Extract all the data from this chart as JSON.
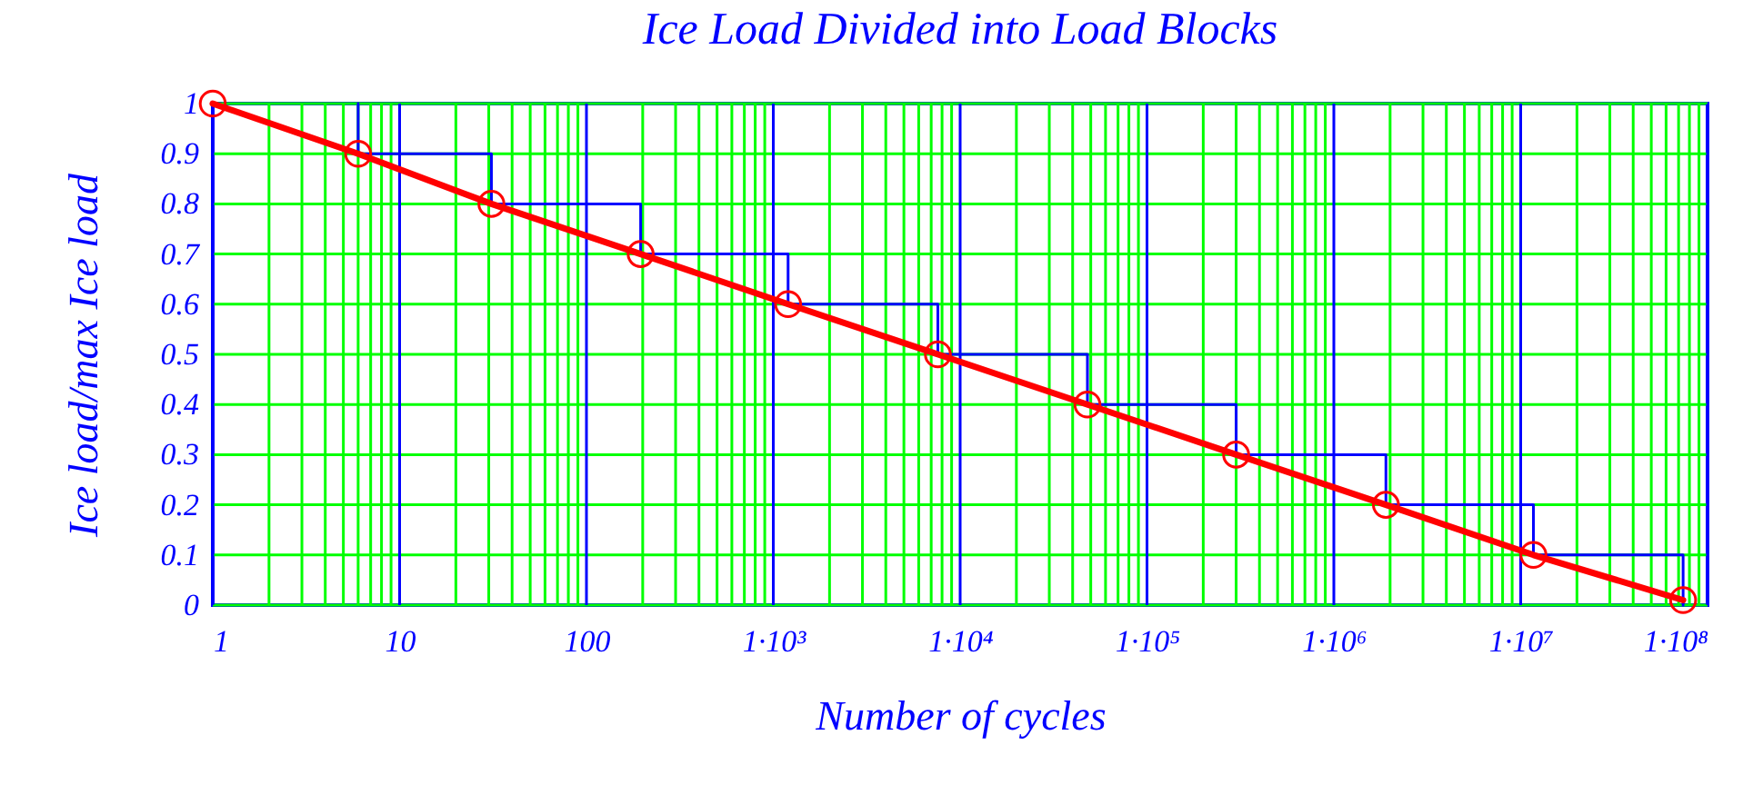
{
  "chart_data": {
    "type": "line",
    "title": "Ice Load Divided into Load Blocks",
    "xlabel": "Number of cycles",
    "ylabel": "Ice load/max Ice load",
    "log": "x",
    "grid": true,
    "xlim": [
      1,
      100000000
    ],
    "ylim": [
      0,
      1
    ],
    "xticks": [
      1,
      {
        "value": 2,
        "label": null
      },
      {
        "value": 3,
        "label": null
      },
      {
        "value": 4,
        "label": null
      },
      {
        "value": 5,
        "label": null
      },
      {
        "value": 6,
        "label": null
      },
      {
        "value": 7,
        "label": null
      },
      {
        "value": 8,
        "label": null
      },
      {
        "value": 9,
        "label": null
      },
      10,
      {
        "value": 20,
        "label": null
      },
      {
        "value": 30,
        "label": null
      },
      {
        "value": 40,
        "label": null
      },
      {
        "value": 50,
        "label": null
      },
      {
        "value": 60,
        "label": null
      },
      {
        "value": 70,
        "label": null
      },
      {
        "value": 80,
        "label": null
      },
      {
        "value": 90,
        "label": null
      },
      100,
      {
        "value": 200,
        "label": null
      },
      {
        "value": 300,
        "label": null
      },
      {
        "value": 400,
        "label": null
      },
      {
        "value": 500,
        "label": null
      },
      {
        "value": 600,
        "label": null
      },
      {
        "value": 700,
        "label": null
      },
      {
        "value": 800,
        "label": null
      },
      {
        "value": 900,
        "label": null
      },
      {
        "value": 1000,
        "label": "1·10³"
      },
      {
        "value": 2000,
        "label": null
      },
      {
        "value": 3000,
        "label": null
      },
      {
        "value": 4000,
        "label": null
      },
      {
        "value": 5000,
        "label": null
      },
      {
        "value": 6000,
        "label": null
      },
      {
        "value": 7000,
        "label": null
      },
      {
        "value": 8000,
        "label": null
      },
      {
        "value": 9000,
        "label": null
      },
      {
        "value": 10000,
        "label": "1·10⁴"
      },
      {
        "value": 20000,
        "label": null
      },
      {
        "value": 30000,
        "label": null
      },
      {
        "value": 40000,
        "label": null
      },
      {
        "value": 50000,
        "label": null
      },
      {
        "value": 60000,
        "label": null
      },
      {
        "value": 70000,
        "label": null
      },
      {
        "value": 80000,
        "label": null
      },
      {
        "value": 90000,
        "label": null
      },
      {
        "value": 100000,
        "label": "1·10⁵"
      },
      {
        "value": 200000,
        "label": null
      },
      {
        "value": 300000,
        "label": null
      },
      {
        "value": 400000,
        "label": null
      },
      {
        "value": 500000,
        "label": null
      },
      {
        "value": 600000,
        "label": null
      },
      {
        "value": 700000,
        "label": null
      },
      {
        "value": 800000,
        "label": null
      },
      {
        "value": 900000,
        "label": null
      },
      {
        "value": 1000000,
        "label": "1·10⁶"
      },
      {
        "value": 2000000,
        "label": null
      },
      {
        "value": 3000000,
        "label": null
      },
      {
        "value": 4000000,
        "label": null
      },
      {
        "value": 5000000,
        "label": null
      },
      {
        "value": 6000000,
        "label": null
      },
      {
        "value": 7000000,
        "label": null
      },
      {
        "value": 8000000,
        "label": null
      },
      {
        "value": 9000000,
        "label": null
      },
      {
        "value": 10000000,
        "label": "1·10⁷"
      },
      {
        "value": 20000000,
        "label": null
      },
      {
        "value": 30000000,
        "label": null
      },
      {
        "value": 40000000,
        "label": null
      },
      {
        "value": 50000000,
        "label": null
      },
      {
        "value": 60000000,
        "label": null
      },
      {
        "value": 70000000,
        "label": null
      },
      {
        "value": 80000000,
        "label": null
      },
      {
        "value": 90000000,
        "label": null
      },
      {
        "value": 100000000,
        "label": "1·10⁸"
      }
    ],
    "yticks": [
      0,
      0.1,
      0.2,
      0.3,
      0.4,
      0.5,
      0.6,
      0.7,
      0.8,
      0.9,
      1
    ],
    "series": [
      {
        "type": "step",
        "color": "#0000ff",
        "x": [
          6,
          31,
          195,
          1200,
          7600,
          48000,
          300000,
          1900000,
          11700000,
          74000000,
          74000000
        ],
        "values": [
          1,
          0.9,
          0.8,
          0.7,
          0.6,
          0.5,
          0.4,
          0.3,
          0.2,
          0.1,
          0
        ]
      },
      {
        "color": "#ff0000",
        "marker": "circle",
        "x": [
          1,
          6,
          31,
          195,
          1200,
          7600,
          48000,
          300000,
          1900000,
          11700000,
          74000000
        ],
        "values": [
          1,
          0.9,
          0.8,
          0.7,
          0.6,
          0.5,
          0.4,
          0.3,
          0.2,
          0.1,
          0.01
        ]
      }
    ]
  }
}
